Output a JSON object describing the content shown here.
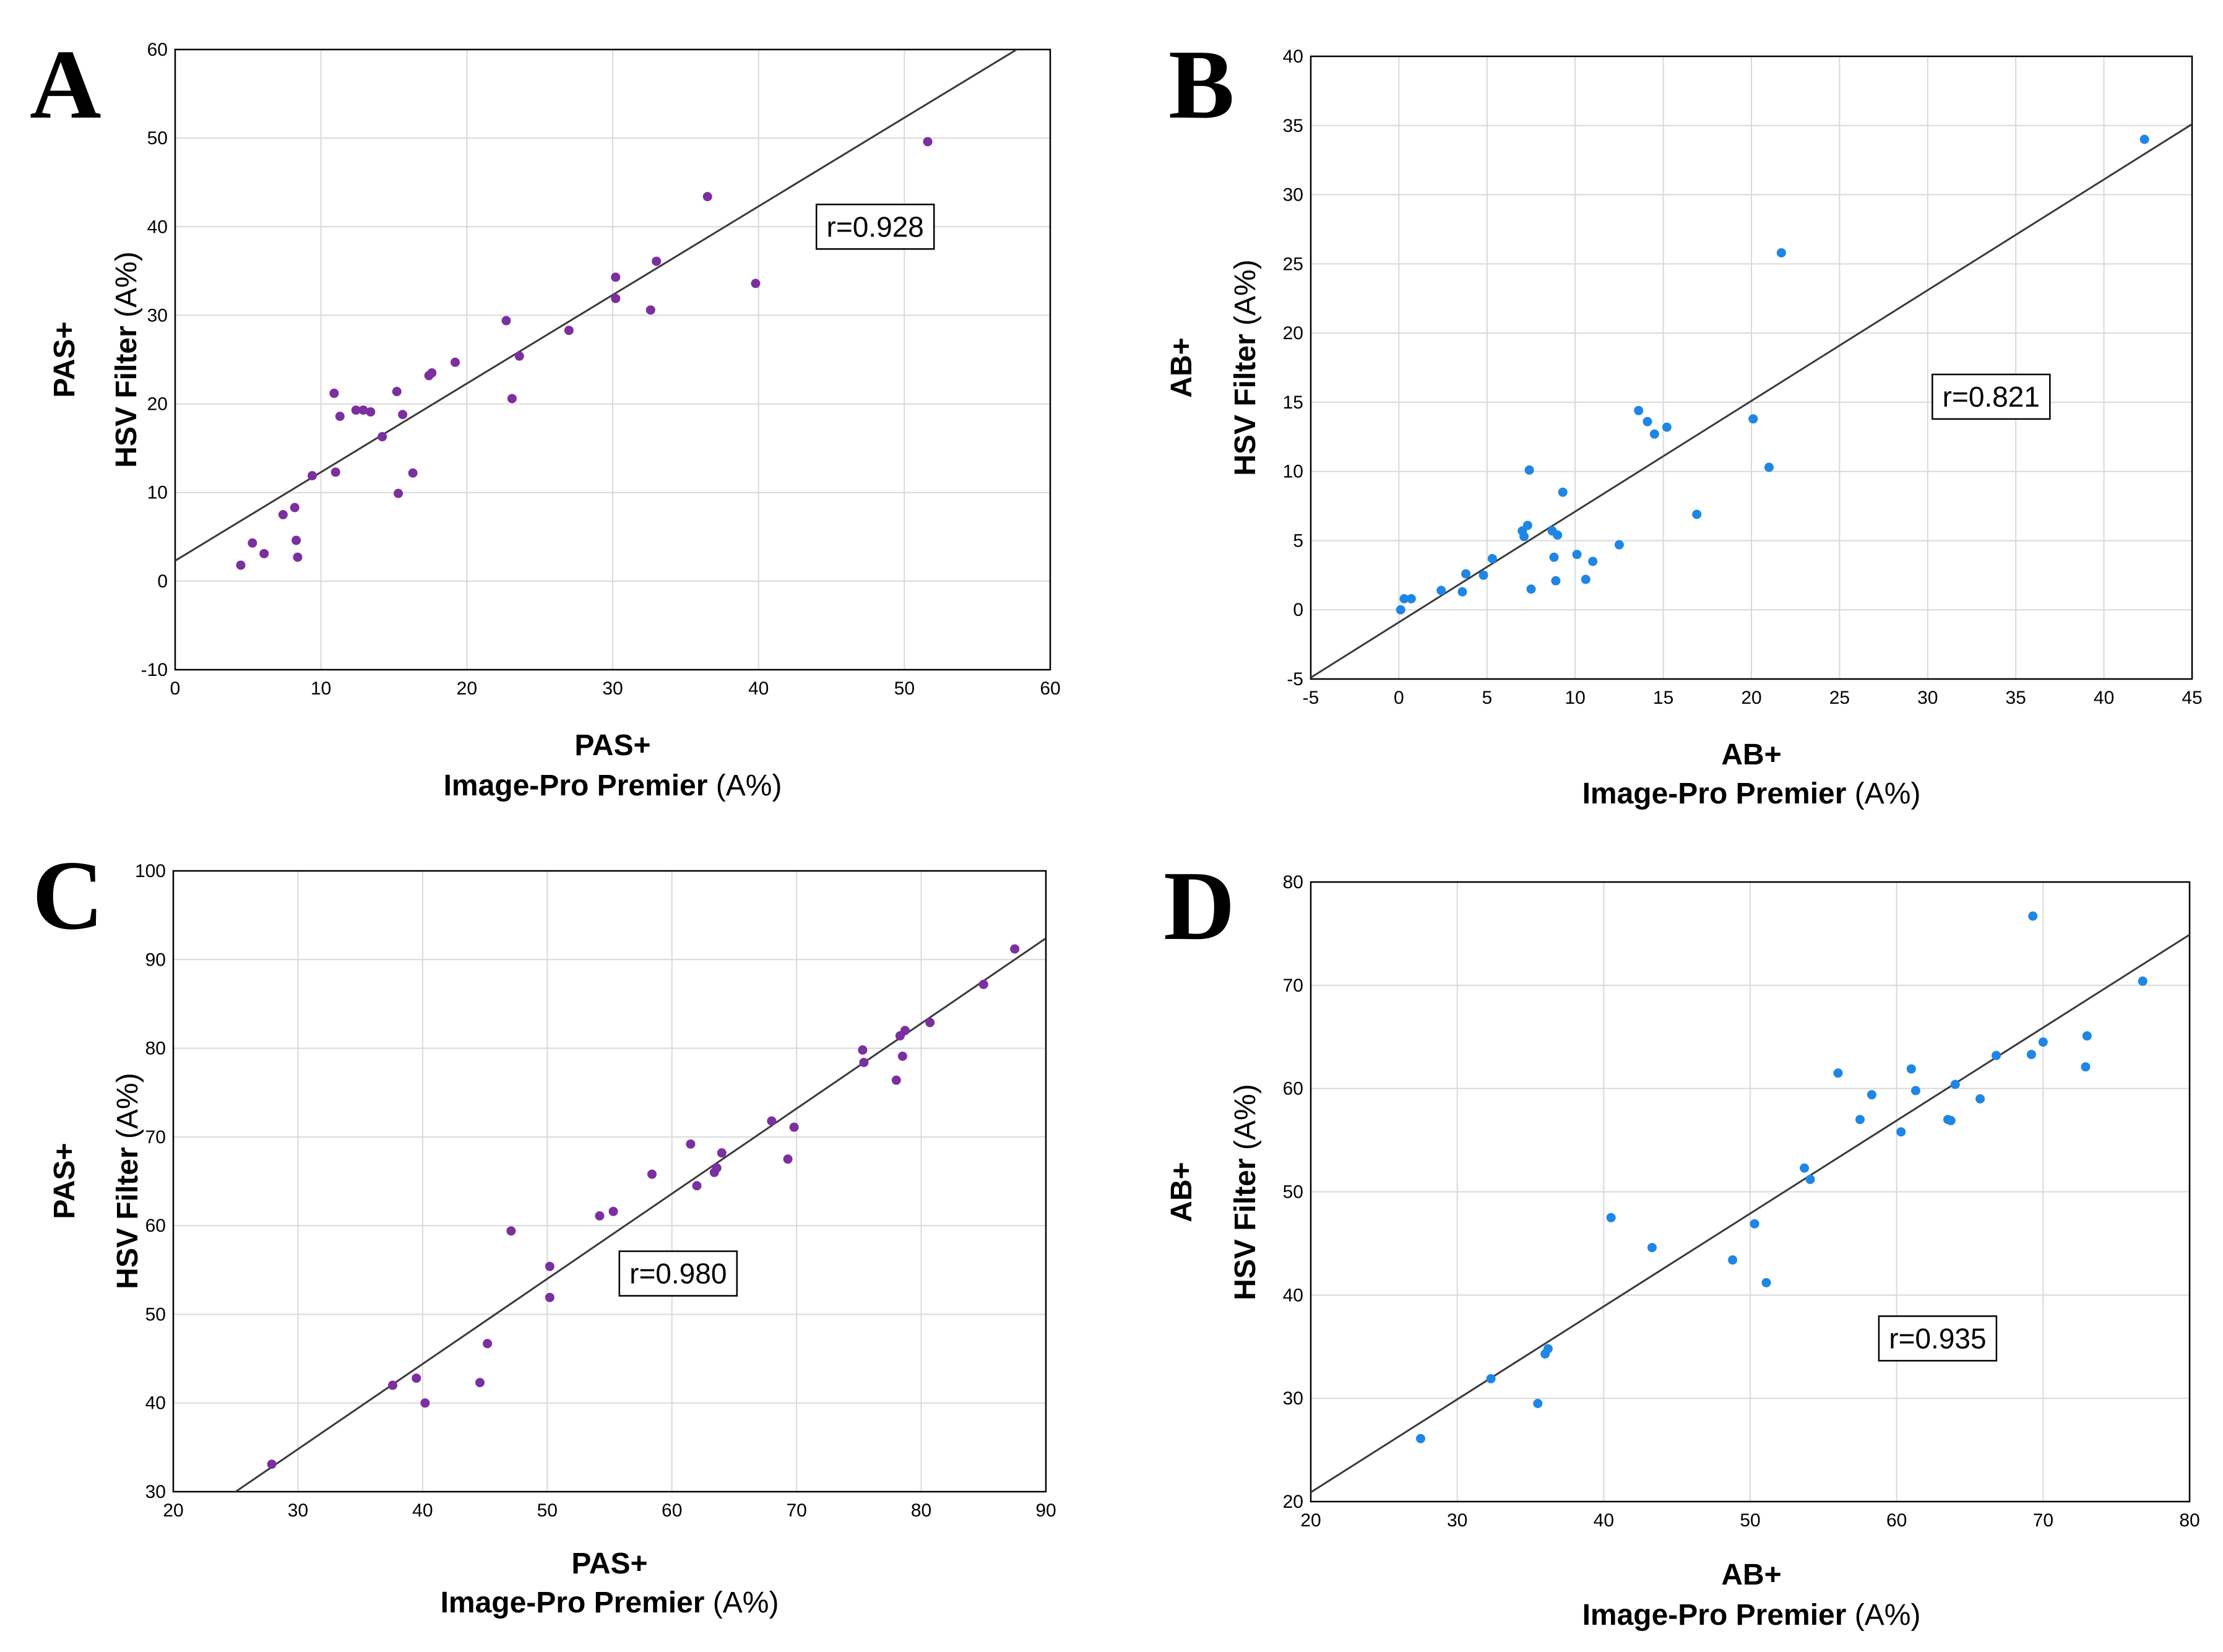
{
  "chart_data": [
    {
      "panel": "A",
      "type": "scatter",
      "xlabel_bold": "PAS+",
      "xlabel_sub_bold": "Image-Pro Premier",
      "xlabel_unit": " (A%)",
      "ylabel_bold": "PAS+",
      "ylabel_sub_bold": "HSV Filter",
      "ylabel_unit": " (A%)",
      "xlim": [
        0,
        60
      ],
      "ylim": [
        -10,
        60
      ],
      "xticks": [
        0,
        10,
        20,
        30,
        40,
        50,
        60
      ],
      "yticks": [
        -10,
        0,
        10,
        20,
        30,
        40,
        50,
        60
      ],
      "point_color": "#7b2fa0",
      "r_label": "r=0.928",
      "r_anchor": [
        48,
        40
      ],
      "fit": {
        "slope": 1.0,
        "intercept": 2.3
      },
      "x": [
        4.5,
        5.3,
        6.1,
        7.4,
        8.2,
        8.3,
        8.4,
        9.4,
        10.9,
        11.0,
        11.3,
        12.4,
        12.9,
        13.4,
        14.2,
        15.2,
        15.3,
        15.6,
        16.3,
        17.4,
        17.6,
        19.2,
        22.7,
        23.1,
        23.6,
        27.0,
        30.2,
        30.2,
        32.6,
        33.0,
        36.5,
        39.8,
        51.6
      ],
      "y": [
        1.8,
        4.3,
        3.1,
        7.5,
        8.3,
        4.6,
        2.7,
        11.9,
        21.2,
        12.3,
        18.6,
        19.3,
        19.3,
        19.1,
        16.3,
        21.4,
        9.9,
        18.8,
        12.2,
        23.2,
        23.5,
        24.7,
        29.4,
        20.6,
        25.4,
        28.3,
        34.3,
        31.9,
        30.6,
        36.1,
        43.4,
        33.6,
        49.6
      ]
    },
    {
      "panel": "B",
      "type": "scatter",
      "xlabel_bold": "AB+",
      "xlabel_sub_bold": "Image-Pro Premier",
      "xlabel_unit": " (A%)",
      "ylabel_bold": "AB+",
      "ylabel_sub_bold": "HSV Filter",
      "ylabel_unit": " (A%)",
      "xlim": [
        -5,
        45
      ],
      "ylim": [
        -5,
        40
      ],
      "xticks": [
        -5,
        0,
        5,
        10,
        15,
        20,
        25,
        30,
        35,
        40,
        45
      ],
      "yticks": [
        -5,
        0,
        5,
        10,
        15,
        20,
        25,
        30,
        35,
        40
      ],
      "point_color": "#1f86e6",
      "r_label": "r=0.821",
      "r_anchor": [
        33.6,
        15.4
      ],
      "fit": {
        "slope": 0.8,
        "intercept": -0.9
      },
      "x": [
        0.1,
        0.3,
        0.7,
        2.4,
        3.6,
        3.8,
        4.8,
        5.3,
        7.0,
        7.1,
        7.3,
        7.4,
        7.5,
        8.7,
        8.8,
        8.9,
        9.0,
        9.3,
        10.1,
        10.6,
        11.0,
        12.5,
        13.6,
        14.1,
        14.5,
        15.2,
        16.9,
        20.1,
        21.0,
        21.7,
        42.3
      ],
      "y": [
        0.0,
        0.8,
        0.8,
        1.4,
        1.3,
        2.6,
        2.5,
        3.7,
        5.7,
        5.3,
        6.1,
        10.1,
        1.5,
        5.7,
        3.8,
        2.1,
        5.4,
        8.5,
        4.0,
        2.2,
        3.5,
        4.7,
        14.4,
        13.6,
        12.7,
        13.2,
        6.9,
        13.8,
        10.3,
        25.8,
        34.0
      ]
    },
    {
      "panel": "C",
      "type": "scatter",
      "xlabel_bold": "PAS+",
      "xlabel_sub_bold": "Image-Pro Premier",
      "xlabel_unit": " (A%)",
      "ylabel_bold": "PAS+",
      "ylabel_sub_bold": "HSV Filter",
      "ylabel_unit": " (A%)",
      "xlim": [
        20,
        90
      ],
      "ylim": [
        30,
        100
      ],
      "xticks": [
        20,
        30,
        40,
        50,
        60,
        70,
        80,
        90
      ],
      "yticks": [
        30,
        40,
        50,
        60,
        70,
        80,
        90,
        100
      ],
      "point_color": "#7b2fa0",
      "r_label": "r=0.980",
      "r_anchor": [
        60.5,
        54.6
      ],
      "fit": {
        "slope": 0.96,
        "intercept": 6.0
      },
      "x": [
        27.9,
        37.6,
        39.5,
        40.2,
        44.6,
        45.2,
        47.1,
        50.2,
        50.2,
        54.2,
        55.3,
        58.4,
        61.5,
        62.0,
        63.4,
        63.6,
        64.0,
        68.0,
        69.3,
        69.8,
        75.3,
        75.4,
        78.0,
        78.3,
        78.5,
        78.7,
        80.7,
        85.0,
        87.5
      ],
      "y": [
        33.1,
        42.0,
        42.8,
        40.0,
        42.3,
        46.7,
        59.4,
        55.4,
        51.9,
        61.1,
        61.6,
        65.8,
        69.2,
        64.5,
        66.0,
        66.5,
        68.2,
        71.8,
        67.5,
        71.1,
        79.8,
        78.4,
        76.4,
        81.4,
        79.1,
        82.0,
        82.9,
        87.2,
        91.2
      ]
    },
    {
      "panel": "D",
      "type": "scatter",
      "xlabel_bold": "AB+",
      "xlabel_sub_bold": "Image-Pro Premier",
      "xlabel_unit": " (A%)",
      "ylabel_bold": "AB+",
      "ylabel_sub_bold": "HSV Filter",
      "ylabel_unit": " (A%)",
      "xlim": [
        20,
        80
      ],
      "ylim": [
        20,
        80
      ],
      "xticks": [
        20,
        30,
        40,
        50,
        60,
        70,
        80
      ],
      "yticks": [
        20,
        30,
        40,
        50,
        60,
        70,
        80
      ],
      "point_color": "#1f86e6",
      "r_label": "r=0.935",
      "r_anchor": [
        62.8,
        35.8
      ],
      "fit": {
        "slope": 0.9,
        "intercept": 2.9
      },
      "x": [
        27.5,
        32.3,
        35.5,
        36.0,
        36.2,
        40.5,
        43.3,
        48.8,
        50.3,
        51.1,
        53.7,
        54.1,
        56.0,
        57.5,
        58.3,
        60.3,
        61.0,
        61.3,
        63.5,
        63.7,
        64.0,
        65.7,
        66.8,
        69.2,
        69.3,
        70.0,
        72.9,
        73.0,
        76.8
      ],
      "y": [
        26.1,
        31.9,
        29.5,
        34.3,
        34.8,
        47.5,
        44.6,
        43.4,
        46.9,
        41.2,
        52.3,
        51.2,
        61.5,
        57.0,
        59.4,
        55.8,
        61.9,
        59.8,
        57.0,
        56.9,
        60.4,
        59.0,
        63.2,
        63.3,
        76.7,
        64.5,
        62.1,
        65.1,
        70.4
      ]
    }
  ]
}
